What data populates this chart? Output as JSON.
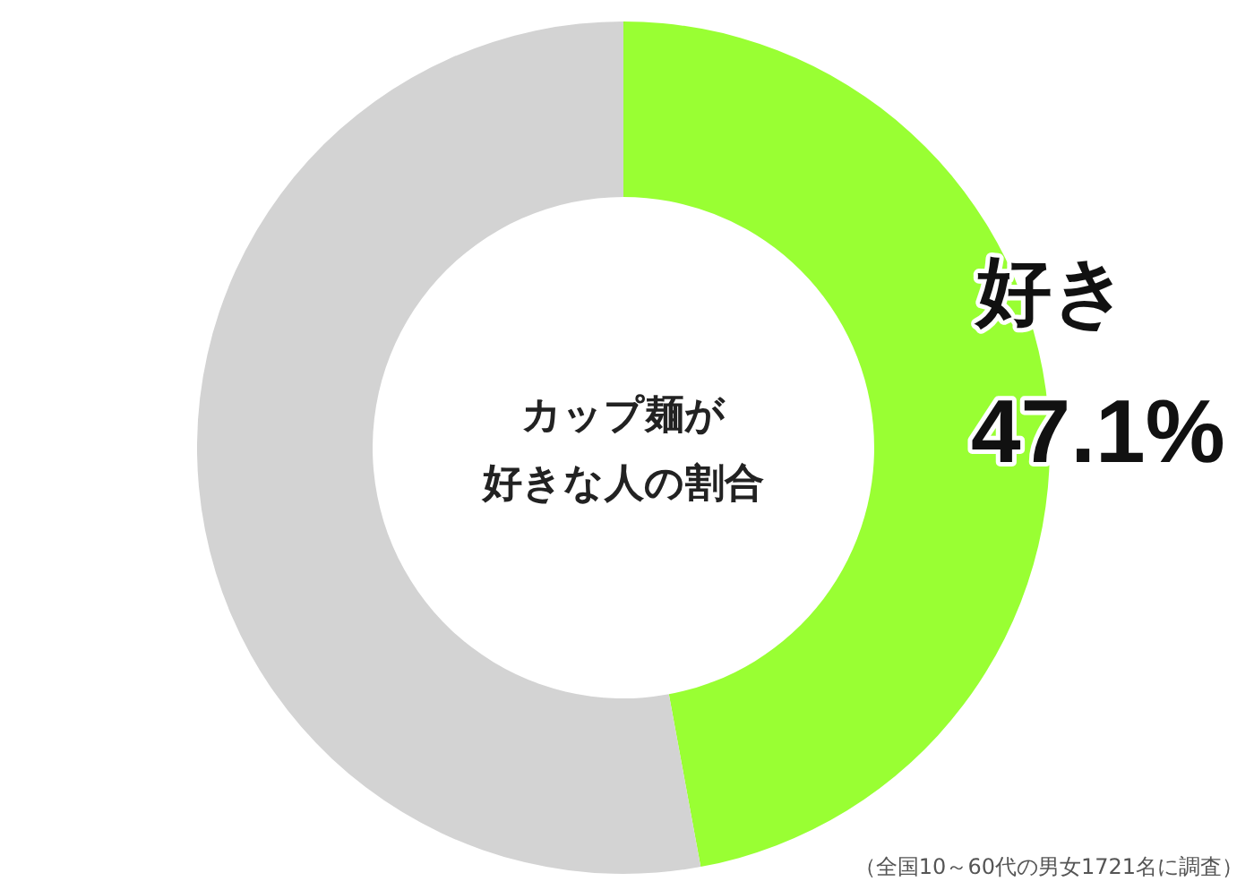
{
  "chart_data": {
    "type": "donut",
    "title": "カップ麺が好きな人の割合",
    "categories": [
      "好き",
      null
    ],
    "values": [
      47.1,
      52.9
    ],
    "colors": [
      "#99ff33",
      "#d3d3d3"
    ],
    "value_labels": [
      "47.1%",
      null
    ],
    "annotations": [
      "（全国10～60代の男女1721名に調査）"
    ]
  }
}
